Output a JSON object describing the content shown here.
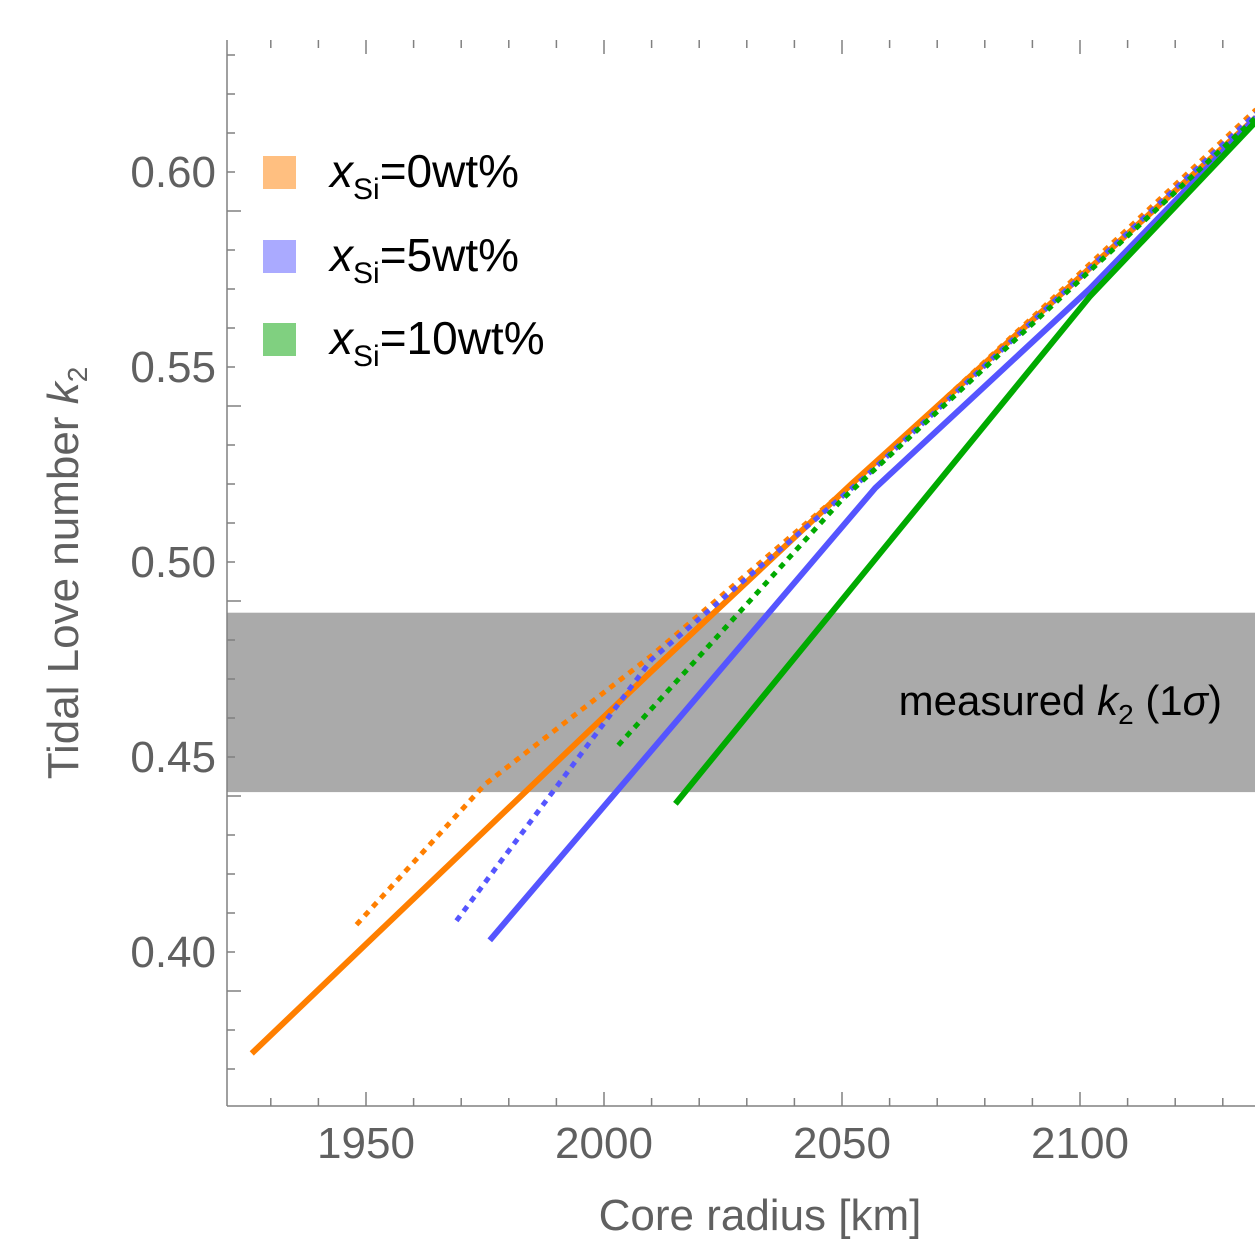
{
  "chart_data": {
    "type": "line",
    "xlabel": "Core radius  [km]",
    "ylabel_main": "Tidal Love number ",
    "ylabel_italic": "k",
    "ylabel_sub": "2",
    "xlim": [
      1922,
      2137
    ],
    "ylim": [
      0.361,
      0.633
    ],
    "x_ticks": [
      1950,
      2000,
      2050,
      2100
    ],
    "x_tick_labels": [
      "1950",
      "2000",
      "2050",
      "2100"
    ],
    "y_ticks": [
      0.4,
      0.45,
      0.5,
      0.55,
      0.6
    ],
    "y_tick_labels": [
      "0.40",
      "0.45",
      "0.50",
      "0.55",
      "0.60"
    ],
    "band": {
      "label_main": "measured ",
      "label_italic": "k",
      "label_sub": "2",
      "label_suffix_open": " (1",
      "label_sigma": "σ",
      "label_suffix_close": ")",
      "ymin": 0.441,
      "ymax": 0.487,
      "color": "#aaaaaa"
    },
    "legend": {
      "placement": "top-left",
      "items": [
        {
          "prefix": "x",
          "sub": "Si",
          "suffix": "=0wt%",
          "color": "#ffbf80"
        },
        {
          "prefix": "x",
          "sub": "Si",
          "suffix": "=5wt%",
          "color": "#aaaaff"
        },
        {
          "prefix": "x",
          "sub": "Si",
          "suffix": "=10wt%",
          "color": "#80d080"
        }
      ]
    },
    "series": [
      {
        "color": "#ff7f00",
        "style": "solid",
        "x": [
          1926,
          2010,
          2052,
          2137
        ],
        "y": [
          0.374,
          0.472,
          0.52,
          0.614
        ]
      },
      {
        "color": "#ff7f00",
        "style": "dashed",
        "x": [
          1948,
          1975,
          2010,
          2055,
          2137
        ],
        "y": [
          0.407,
          0.443,
          0.476,
          0.523,
          0.616
        ]
      },
      {
        "color": "#5555ff",
        "style": "solid",
        "x": [
          1976,
          2057,
          2102,
          2137
        ],
        "y": [
          0.403,
          0.519,
          0.57,
          0.614
        ]
      },
      {
        "color": "#5555ff",
        "style": "dashed",
        "x": [
          1969,
          2010,
          2055,
          2137
        ],
        "y": [
          0.408,
          0.475,
          0.522,
          0.615
        ]
      },
      {
        "color": "#00aa00",
        "style": "solid",
        "x": [
          2015,
          2102,
          2137
        ],
        "y": [
          0.438,
          0.568,
          0.613
        ]
      },
      {
        "color": "#00aa00",
        "style": "dashed",
        "x": [
          2003,
          2050,
          2137
        ],
        "y": [
          0.453,
          0.516,
          0.614
        ]
      }
    ]
  }
}
